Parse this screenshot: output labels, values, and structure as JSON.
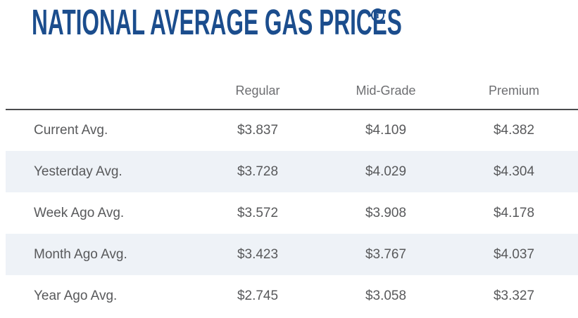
{
  "title": "NATIONAL AVERAGE GAS PRICES",
  "info_icon_glyph": "i",
  "colors": {
    "title_blue": "#1b4d8d",
    "header_text_gray": "#6d6e71",
    "body_text_gray": "#58595b",
    "row_stripe": "#eef2f7",
    "header_divider": "#4b4c4e"
  },
  "chart_data": {
    "type": "table",
    "title": "NATIONAL AVERAGE GAS PRICES",
    "columns": [
      "Regular",
      "Mid-Grade",
      "Premium"
    ],
    "rows": [
      {
        "label": "Current Avg.",
        "values": [
          "$3.837",
          "$4.109",
          "$4.382"
        ]
      },
      {
        "label": "Yesterday Avg.",
        "values": [
          "$3.728",
          "$4.029",
          "$4.304"
        ]
      },
      {
        "label": "Week Ago Avg.",
        "values": [
          "$3.572",
          "$3.908",
          "$4.178"
        ]
      },
      {
        "label": "Month Ago Avg.",
        "values": [
          "$3.423",
          "$3.767",
          "$4.037"
        ]
      },
      {
        "label": "Year Ago Avg.",
        "values": [
          "$2.745",
          "$3.058",
          "$3.327"
        ]
      }
    ]
  }
}
